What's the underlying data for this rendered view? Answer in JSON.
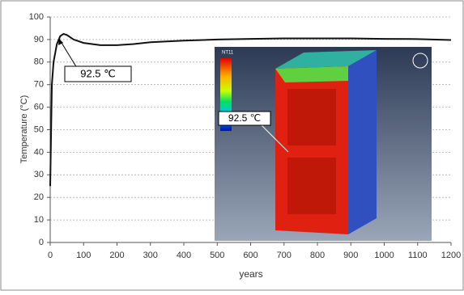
{
  "chart_data": {
    "type": "line",
    "x_label": "years",
    "y_label": "Temperature (°C)",
    "x": [
      0,
      5,
      10,
      20,
      30,
      40,
      50,
      70,
      100,
      150,
      200,
      250,
      300,
      400,
      500,
      600,
      700,
      800,
      900,
      1000,
      1100,
      1200
    ],
    "series": [
      {
        "color": "#111111",
        "values": [
          25,
          70,
          80,
          88,
          91.5,
          92.5,
          92,
          90,
          88.5,
          87.5,
          87.5,
          88,
          88.8,
          89.5,
          90,
          90.3,
          90.5,
          90.5,
          90.5,
          90.3,
          90.2,
          89.8
        ]
      }
    ],
    "xlim": [
      0,
      1200
    ],
    "xticks": [
      0,
      100,
      200,
      300,
      400,
      500,
      600,
      700,
      800,
      900,
      1000,
      1100,
      1200
    ],
    "ylim": [
      0,
      100
    ],
    "yticks": [
      0,
      10,
      20,
      30,
      40,
      50,
      60,
      70,
      80,
      90,
      100
    ],
    "grid": true,
    "annotations": [
      {
        "text": "92.5 ℃"
      },
      {
        "text": "92.5 ℃"
      }
    ],
    "inset_legend_title": "NT11"
  }
}
